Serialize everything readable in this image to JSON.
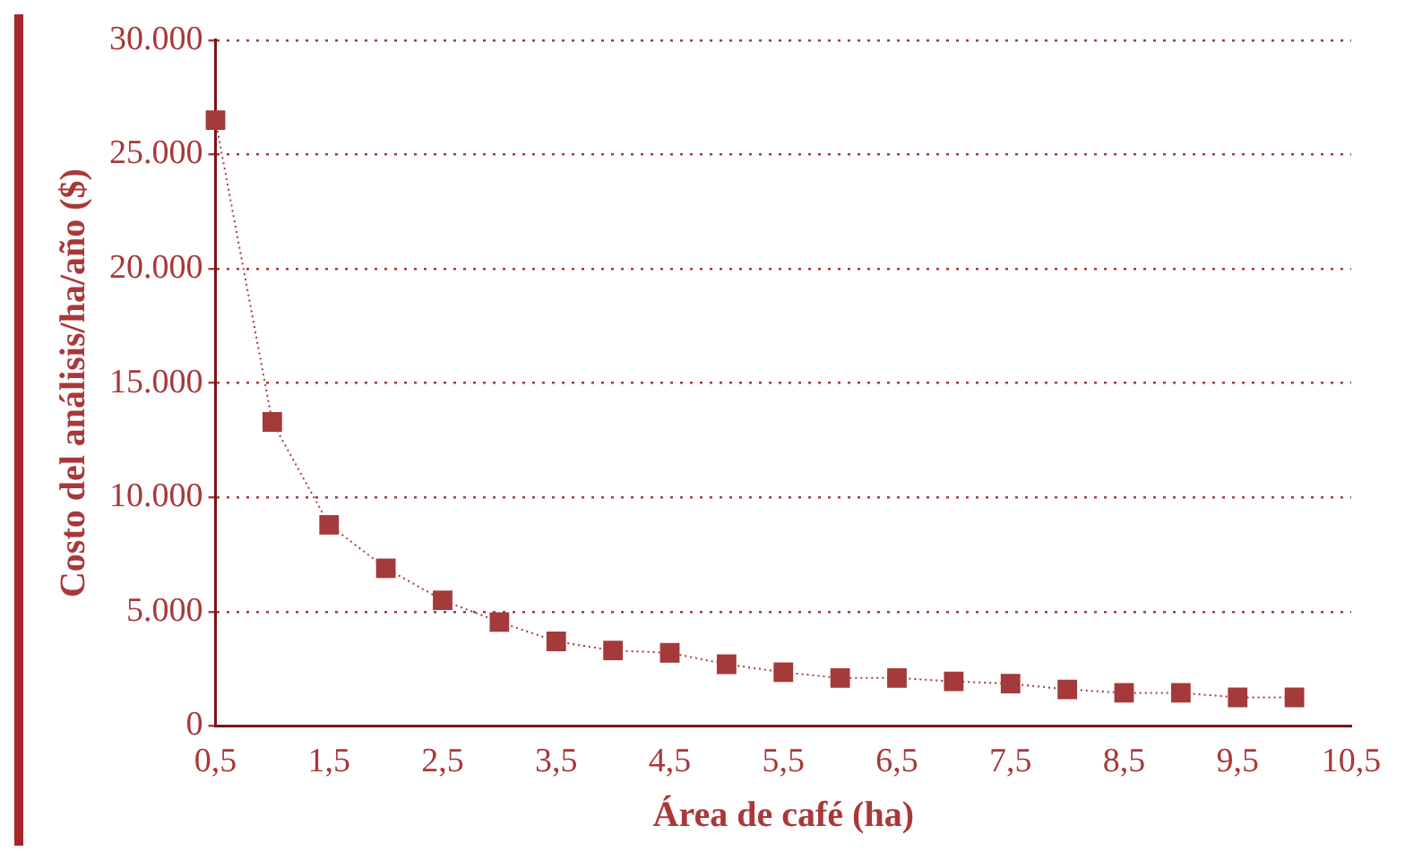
{
  "chart_data": {
    "type": "line",
    "xlabel": "Área de café (ha)",
    "ylabel": "Costo del análisis/ha/año ($)",
    "x": [
      0.5,
      1,
      1.5,
      2,
      2.5,
      3,
      3.5,
      4,
      4.5,
      5,
      5.5,
      6,
      6.5,
      7,
      7.5,
      8,
      8.5,
      9,
      9.5,
      10
    ],
    "series": [
      {
        "color": "#a53a3a",
        "values": [
          26500,
          13300,
          8800,
          6900,
          5500,
          4550,
          3700,
          3300,
          3200,
          2700,
          2350,
          2100,
          2100,
          1950,
          1850,
          1600,
          1450,
          1450,
          1250,
          1250
        ]
      }
    ],
    "xlim": [
      0.5,
      10.5
    ],
    "xticks": [
      {
        "value": 0.5,
        "label": "0,5"
      },
      {
        "value": 1.5,
        "label": "1,5"
      },
      {
        "value": 2.5,
        "label": "2,5"
      },
      {
        "value": 3.5,
        "label": "3,5"
      },
      {
        "value": 4.5,
        "label": "4,5"
      },
      {
        "value": 5.5,
        "label": "5,5"
      },
      {
        "value": 6.5,
        "label": "6,5"
      },
      {
        "value": 7.5,
        "label": "7,5"
      },
      {
        "value": 8.5,
        "label": "8,5"
      },
      {
        "value": 9.5,
        "label": "9,5"
      },
      {
        "value": 10.5,
        "label": "10,5"
      }
    ],
    "ylim": [
      0,
      30000
    ],
    "yticks": [
      0,
      {
        "value": 5000,
        "label": "5.000"
      },
      {
        "value": 10000,
        "label": "10.000"
      },
      {
        "value": 15000,
        "label": "15.000"
      },
      {
        "value": 20000,
        "label": "20.000"
      },
      {
        "value": 25000,
        "label": "25.000"
      },
      {
        "value": 30000,
        "label": "30.000"
      }
    ],
    "grid": "y",
    "legend": false,
    "marker": "square",
    "line_style": "dotted"
  }
}
